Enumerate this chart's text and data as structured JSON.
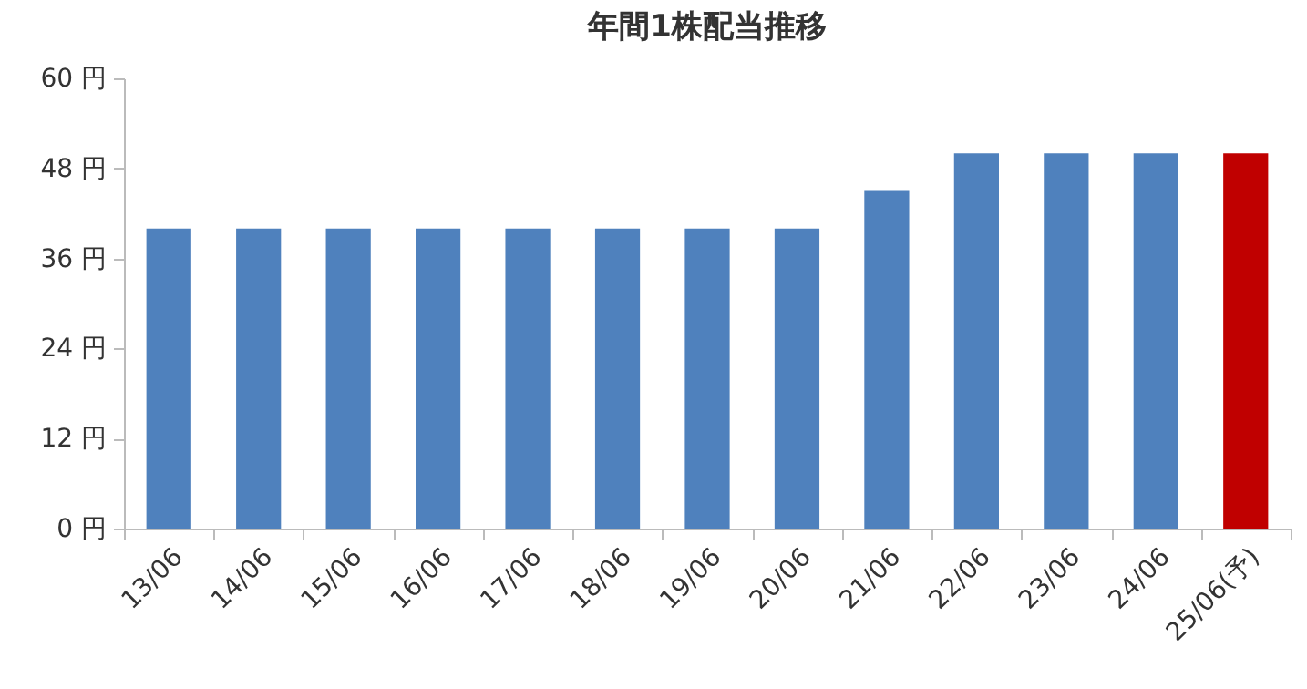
{
  "chart_data": {
    "type": "bar",
    "title": "年間1株配当推移",
    "categories": [
      "13/06",
      "14/06",
      "15/06",
      "16/06",
      "17/06",
      "18/06",
      "19/06",
      "20/06",
      "21/06",
      "22/06",
      "23/06",
      "24/06",
      "25/06(予)"
    ],
    "values": [
      40,
      40,
      40,
      40,
      40,
      40,
      40,
      40,
      45,
      50,
      50,
      50,
      50
    ],
    "colors": [
      "#4f81bd",
      "#4f81bd",
      "#4f81bd",
      "#4f81bd",
      "#4f81bd",
      "#4f81bd",
      "#4f81bd",
      "#4f81bd",
      "#4f81bd",
      "#4f81bd",
      "#4f81bd",
      "#4f81bd",
      "#c00000"
    ],
    "ylim": [
      0,
      60
    ],
    "yticks": [
      {
        "value": 0,
        "label": "0 円"
      },
      {
        "value": 12,
        "label": "12 円"
      },
      {
        "value": 24,
        "label": "24 円"
      },
      {
        "value": 36,
        "label": "36 円"
      },
      {
        "value": 48,
        "label": "48 円"
      },
      {
        "value": 60,
        "label": "60 円"
      }
    ],
    "grid": false
  }
}
